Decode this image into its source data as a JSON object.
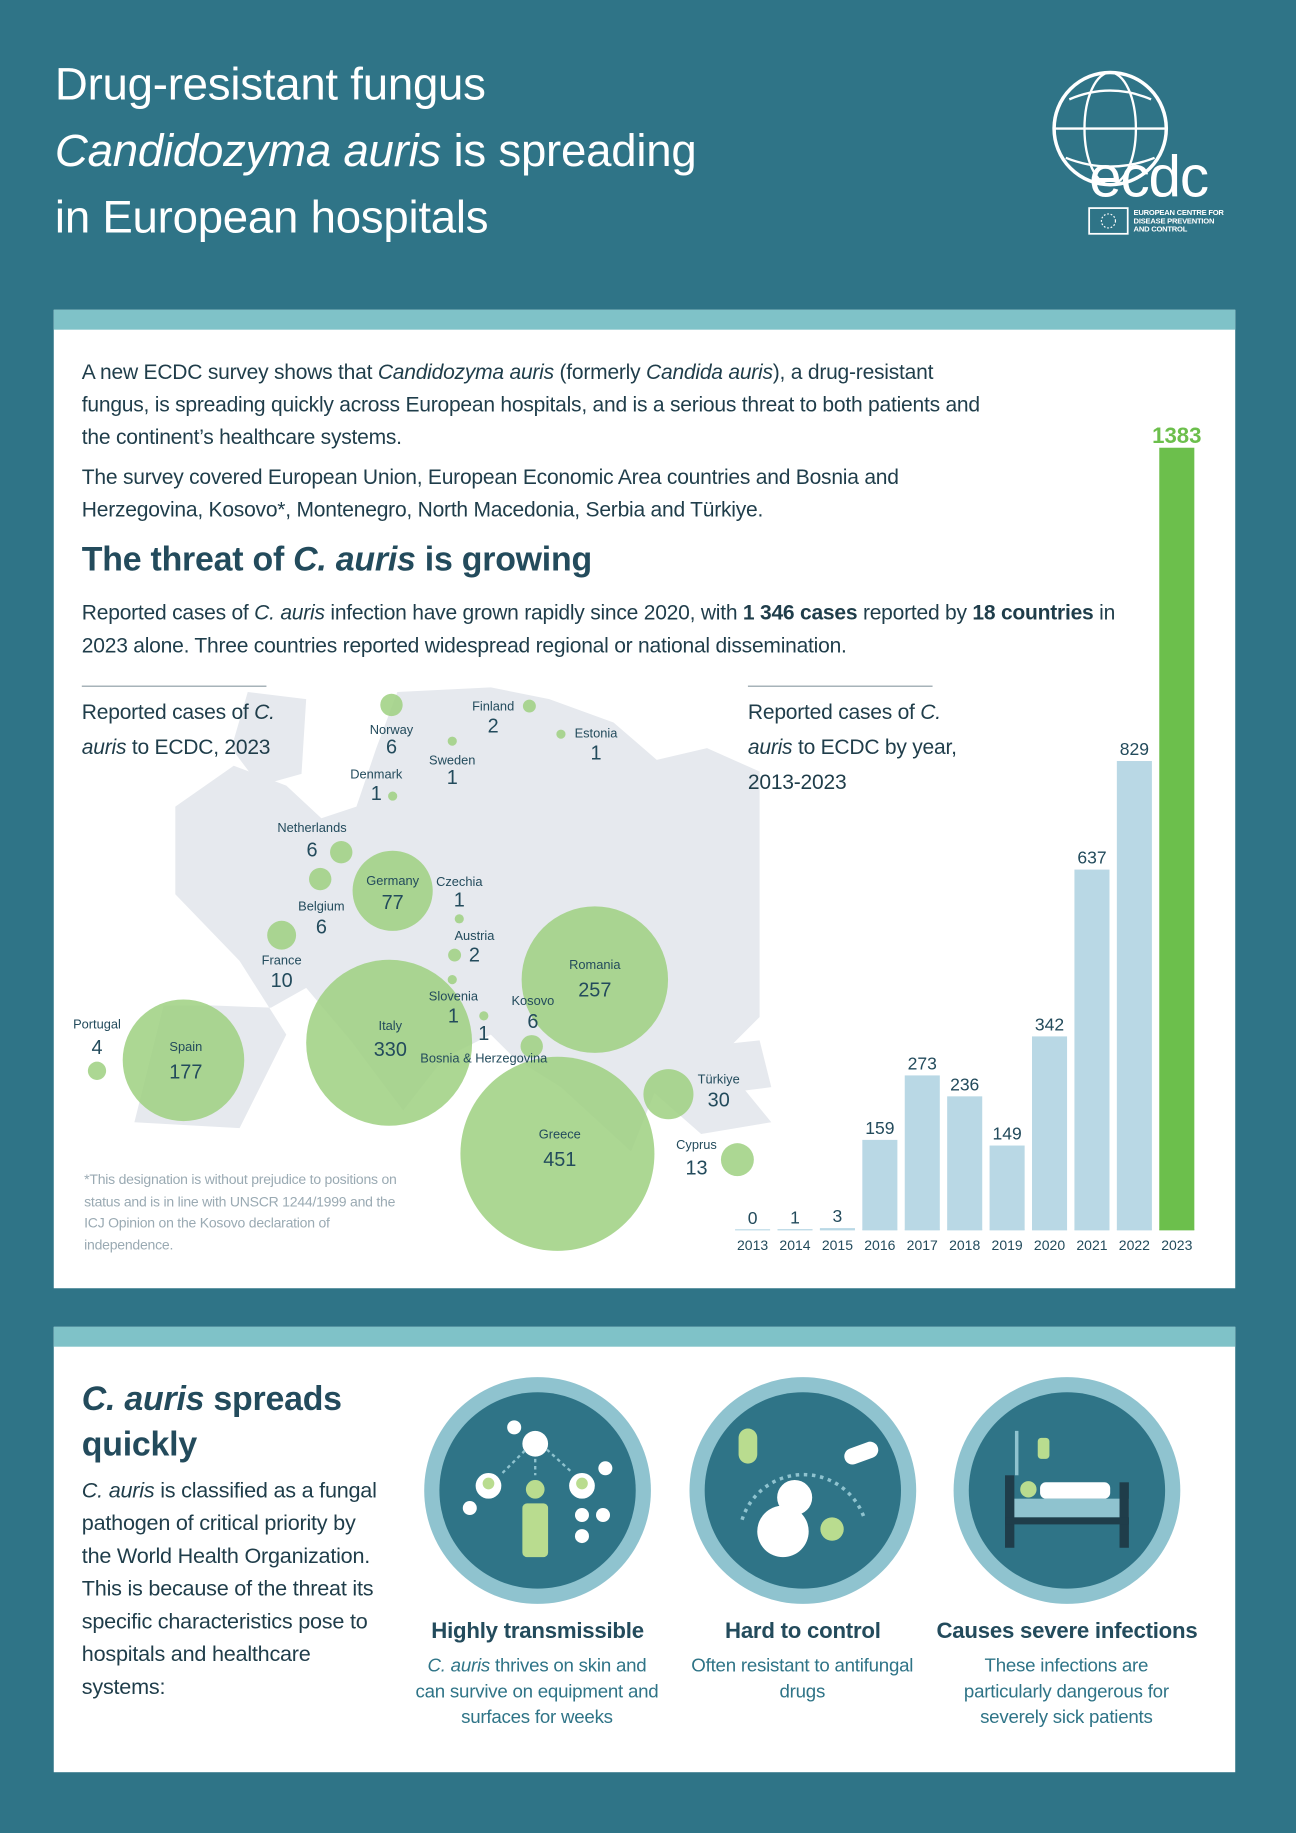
{
  "header": {
    "title_lines": [
      [
        "Drug-resistant fungus"
      ],
      [
        {
          "t": "Candidozyma auris",
          "s": "i"
        },
        " is spreading"
      ],
      [
        "in European hospitals"
      ]
    ],
    "logo": {
      "name": "ecdc",
      "subtitle_lines": [
        "EUROPEAN CENTRE FOR",
        "DISEASE PREVENTION",
        "AND CONTROL"
      ]
    }
  },
  "intro": {
    "paragraphs": [
      [
        "A new ECDC survey shows that ",
        {
          "t": "Candidozyma auris",
          "s": "i"
        },
        " (formerly ",
        {
          "t": "Candida auris",
          "s": "i"
        },
        "), a drug-resistant fungus, is spreading quickly across European hospitals, and is a serious threat to both patients and the continent’s healthcare systems."
      ],
      [
        "The survey covered European Union, European Economic Area countries and Bosnia and Herzegovina, Kosovo*, Montenegro, North Macedonia, Serbia and Türkiye."
      ]
    ],
    "heading": [
      "The threat of ",
      {
        "t": "C. auris",
        "s": "i"
      },
      " is growing"
    ],
    "summary": [
      "Reported cases of ",
      {
        "t": "C. auris",
        "s": "i"
      },
      " infection have grown rapidly since 2020, with ",
      {
        "t": "1 346 cases",
        "s": "b"
      },
      " reported by ",
      {
        "t": "18 countries",
        "s": "b"
      },
      " in 2023 alone. Three countries reported widespread regional or national dissemination."
    ]
  },
  "map": {
    "title": [
      "Reported cases of ",
      {
        "t": "C. auris",
        "s": "i"
      },
      " to ECDC, 2023"
    ],
    "bubble_color": "#9dd080",
    "countries": [
      {
        "name": "Norway",
        "value": 6
      },
      {
        "name": "Finland",
        "value": 2
      },
      {
        "name": "Estonia",
        "value": 1
      },
      {
        "name": "Sweden",
        "value": 1
      },
      {
        "name": "Denmark",
        "value": 1
      },
      {
        "name": "Netherlands",
        "value": 6
      },
      {
        "name": "Belgium",
        "value": 6
      },
      {
        "name": "Germany",
        "value": 77
      },
      {
        "name": "Czechia",
        "value": 1
      },
      {
        "name": "Austria",
        "value": 2
      },
      {
        "name": "France",
        "value": 10
      },
      {
        "name": "Slovenia",
        "value": 1
      },
      {
        "name": "Kosovo",
        "value": 6
      },
      {
        "name": "Bosnia & Herzegovina",
        "value": 1
      },
      {
        "name": "Italy",
        "value": 330
      },
      {
        "name": "Romania",
        "value": 257
      },
      {
        "name": "Spain",
        "value": 177
      },
      {
        "name": "Portugal",
        "value": 4
      },
      {
        "name": "Greece",
        "value": 451
      },
      {
        "name": "Türkiye",
        "value": 30
      },
      {
        "name": "Cyprus",
        "value": 13
      }
    ],
    "footnote": "*This designation is without prejudice to positions on status and is in line with UNSCR 1244/1999 and the ICJ Opinion on the Kosovo declaration of independence."
  },
  "chart_data": {
    "type": "bar",
    "title": [
      "Reported cases of ",
      {
        "t": "C. auris",
        "s": "i"
      },
      " to ECDC by year, 2013-2023"
    ],
    "categories": [
      "2013",
      "2014",
      "2015",
      "2016",
      "2017",
      "2018",
      "2019",
      "2020",
      "2021",
      "2022",
      "2023"
    ],
    "values": [
      0,
      1,
      3,
      159,
      273,
      236,
      149,
      342,
      637,
      829,
      1383
    ],
    "colors": [
      "#b9d8e5",
      "#b9d8e5",
      "#b9d8e5",
      "#b9d8e5",
      "#b9d8e5",
      "#b9d8e5",
      "#b9d8e5",
      "#b9d8e5",
      "#b9d8e5",
      "#b9d8e5",
      "#6cbf4c"
    ]
  },
  "spread": {
    "heading": [
      {
        "t": "C. auris",
        "s": "i"
      },
      " spreads quickly"
    ],
    "paragraphs": [
      [
        {
          "t": "C. auris",
          "s": "i"
        },
        " is classified as a fungal pathogen of critical priority by the World Health Organization."
      ],
      [
        "This is because of the threat its specific characteristics pose to hospitals and healthcare systems:"
      ]
    ],
    "features": [
      {
        "title": "Highly transmissible",
        "text": [
          {
            "t": "C. auris",
            "s": "i"
          },
          " thrives on skin and can survive on equipment and surfaces for weeks"
        ]
      },
      {
        "title": "Hard to control",
        "text": [
          "Often resistant to antifungal drugs"
        ]
      },
      {
        "title": "Causes severe infections",
        "text": [
          "These infections are particularly dangerous for severely sick patients"
        ]
      }
    ]
  }
}
